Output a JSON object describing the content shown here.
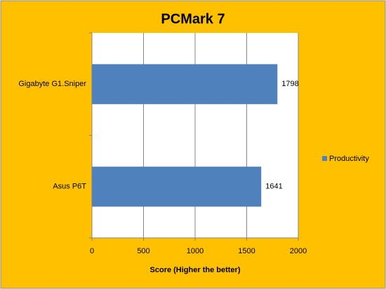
{
  "chart_data": {
    "type": "bar",
    "orientation": "horizontal",
    "title": "PCMark 7",
    "x_label": "Score (Higher the better)",
    "categories": [
      "Gigabyte G1.Sniper",
      "Asus P6T"
    ],
    "series": [
      {
        "name": "Productivity",
        "color": "#4f81bd",
        "values": [
          1798,
          1641
        ]
      }
    ],
    "xlim": [
      0,
      2000
    ],
    "xticks": [
      0,
      500,
      1000,
      1500,
      2000
    ],
    "grid": true,
    "legend": "right"
  }
}
